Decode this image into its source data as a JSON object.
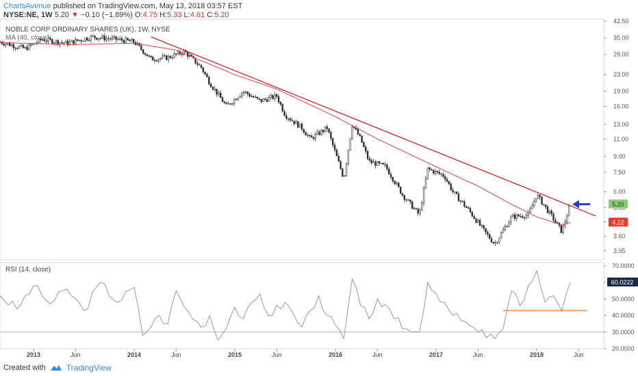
{
  "header": {
    "author": "ChartsAvenue",
    "published": "published on TradingView.com, May 13, 2018 03:57 EST",
    "symbol": "NYSE:NE, 1W",
    "last": "5.20",
    "change_arrow": "▼",
    "change": "−0.10 (−1.89%)",
    "o_label": "O:",
    "o_val": "4.75",
    "h_label": "H:",
    "h_val": "5.33",
    "l_label": "L:",
    "l_val": "4.61",
    "c_label": "C:",
    "c_val": "5.20"
  },
  "footer": {
    "created_with": "Created with",
    "brand": "TradingView"
  },
  "colors": {
    "up": "#2b2b2b",
    "down": "#2b2b2b",
    "ma": "#e63946",
    "trend": "#e02020",
    "rsi": "#8a8f99",
    "support": "#f5b27a",
    "arrow": "#1f3fd6",
    "accent": "#2f8be0"
  },
  "chart_data": [
    {
      "type": "candlestick",
      "title": "NOBLE CORP ORDINARY SHARES (UK), 1W, NYSE",
      "subtitle": "MA (40, close)",
      "y_scale": "log",
      "y_ticks": [
        3.05,
        3.6,
        4.25,
        5.0,
        6.0,
        7.5,
        9.0,
        11.0,
        13.0,
        16.0,
        19.0,
        23.0,
        29.0,
        35.0,
        42.5
      ],
      "y_tick_labels": [
        "3.05",
        "3.60",
        "",
        "5.00",
        "6.00",
        "7.50",
        "9.00",
        "11.00",
        "13.00",
        "16.00",
        "19.00",
        "23.00",
        "29.00",
        "35.00",
        "42.50"
      ],
      "x_ticks": [
        "2013-01",
        "2013-06",
        "2014-01",
        "2014-06",
        "2015-01",
        "2015-06",
        "2016-01",
        "2016-06",
        "2017-01",
        "2017-06",
        "2018-01",
        "2018-06"
      ],
      "x_tick_labels": [
        "2013",
        "Jun",
        "2014",
        "Jun",
        "2015",
        "Jun",
        "2016",
        "Jun",
        "2017",
        "Jun",
        "2018",
        "Jun"
      ],
      "x_range": [
        "2012-09",
        "2018-09"
      ],
      "price_points": [
        [
          "2012-09",
          33.5
        ],
        [
          "2012-12",
          31.0
        ],
        [
          "2013-02",
          34.5
        ],
        [
          "2013-05",
          33.0
        ],
        [
          "2013-08",
          35.5
        ],
        [
          "2013-11",
          34.5
        ],
        [
          "2014-01",
          33.5
        ],
        [
          "2014-03",
          27.5
        ],
        [
          "2014-05",
          28.0
        ],
        [
          "2014-07",
          30.0
        ],
        [
          "2014-09",
          25.0
        ],
        [
          "2014-10",
          21.0
        ],
        [
          "2014-12",
          16.0
        ],
        [
          "2015-02",
          19.0
        ],
        [
          "2015-04",
          17.0
        ],
        [
          "2015-06",
          18.0
        ],
        [
          "2015-07",
          14.5
        ],
        [
          "2015-09",
          12.5
        ],
        [
          "2015-10",
          11.0
        ],
        [
          "2015-12",
          12.5
        ],
        [
          "2016-02",
          7.0
        ],
        [
          "2016-03",
          13.0
        ],
        [
          "2016-04",
          11.0
        ],
        [
          "2016-05",
          8.5
        ],
        [
          "2016-07",
          8.0
        ],
        [
          "2016-09",
          5.8
        ],
        [
          "2016-11",
          4.6
        ],
        [
          "2016-12",
          7.8
        ],
        [
          "2017-02",
          7.2
        ],
        [
          "2017-03",
          6.0
        ],
        [
          "2017-05",
          4.8
        ],
        [
          "2017-07",
          3.7
        ],
        [
          "2017-08",
          3.3
        ],
        [
          "2017-10",
          4.5
        ],
        [
          "2017-12",
          4.6
        ],
        [
          "2018-01",
          5.8
        ],
        [
          "2018-03",
          4.4
        ],
        [
          "2018-04",
          3.8
        ],
        [
          "2018-05",
          5.2
        ]
      ],
      "ma_40": [
        [
          "2012-09",
          33.2
        ],
        [
          "2013-06",
          32.5
        ],
        [
          "2014-01",
          33.0
        ],
        [
          "2014-06",
          30.5
        ],
        [
          "2015-01",
          23.0
        ],
        [
          "2015-06",
          19.5
        ],
        [
          "2016-01",
          14.2
        ],
        [
          "2016-06",
          11.0
        ],
        [
          "2017-01",
          8.0
        ],
        [
          "2017-06",
          6.4
        ],
        [
          "2017-10",
          5.2
        ],
        [
          "2018-01",
          4.5
        ],
        [
          "2018-04",
          4.1
        ],
        [
          "2018-05",
          4.22
        ]
      ],
      "trendline": [
        [
          "2014-03",
          35.5
        ],
        [
          "2018-08",
          4.55
        ]
      ],
      "last_price": {
        "value": 5.2,
        "label": "5.20"
      },
      "ma_value": {
        "value": 4.22,
        "label": "4.22"
      },
      "annotation": "blue arrow pointing at last price"
    },
    {
      "type": "line",
      "title": "RSI (14, close)",
      "y_ticks": [
        20,
        30,
        40,
        50,
        60,
        70
      ],
      "y_tick_labels": [
        "20.0000",
        "30.0000",
        "40.0000",
        "50.0000",
        "60.0000",
        "70.0000"
      ],
      "y_range": [
        20,
        72
      ],
      "reference_line": 30,
      "support_line": {
        "value": 43,
        "from": "2017-09",
        "to": "2018-07"
      },
      "last_value": {
        "value": 60.0222,
        "label": "60.0222"
      },
      "points": [
        [
          "2012-09",
          52
        ],
        [
          "2012-11",
          44
        ],
        [
          "2013-01",
          58
        ],
        [
          "2013-03",
          47
        ],
        [
          "2013-05",
          56
        ],
        [
          "2013-07",
          43
        ],
        [
          "2013-09",
          60
        ],
        [
          "2013-11",
          48
        ],
        [
          "2014-01",
          57
        ],
        [
          "2014-02",
          28
        ],
        [
          "2014-04",
          40
        ],
        [
          "2014-05",
          35
        ],
        [
          "2014-06",
          55
        ],
        [
          "2014-07",
          45
        ],
        [
          "2014-09",
          33
        ],
        [
          "2014-10",
          40
        ],
        [
          "2014-11",
          25
        ],
        [
          "2015-01",
          45
        ],
        [
          "2015-02",
          38
        ],
        [
          "2015-04",
          53
        ],
        [
          "2015-05",
          40
        ],
        [
          "2015-07",
          48
        ],
        [
          "2015-09",
          33
        ],
        [
          "2015-10",
          43
        ],
        [
          "2015-11",
          52
        ],
        [
          "2015-12",
          40
        ],
        [
          "2016-02",
          26
        ],
        [
          "2016-03",
          62
        ],
        [
          "2016-04",
          46
        ],
        [
          "2016-05",
          38
        ],
        [
          "2016-06",
          50
        ],
        [
          "2016-08",
          38
        ],
        [
          "2016-10",
          30
        ],
        [
          "2016-11",
          30
        ],
        [
          "2016-12",
          60
        ],
        [
          "2017-02",
          48
        ],
        [
          "2017-03",
          40
        ],
        [
          "2017-05",
          34
        ],
        [
          "2017-06",
          30
        ],
        [
          "2017-08",
          26
        ],
        [
          "2017-09",
          32
        ],
        [
          "2017-10",
          55
        ],
        [
          "2017-11",
          46
        ],
        [
          "2017-12",
          58
        ],
        [
          "2018-01",
          67
        ],
        [
          "2018-02",
          48
        ],
        [
          "2018-03",
          52
        ],
        [
          "2018-04",
          43
        ],
        [
          "2018-05",
          60
        ]
      ]
    }
  ]
}
